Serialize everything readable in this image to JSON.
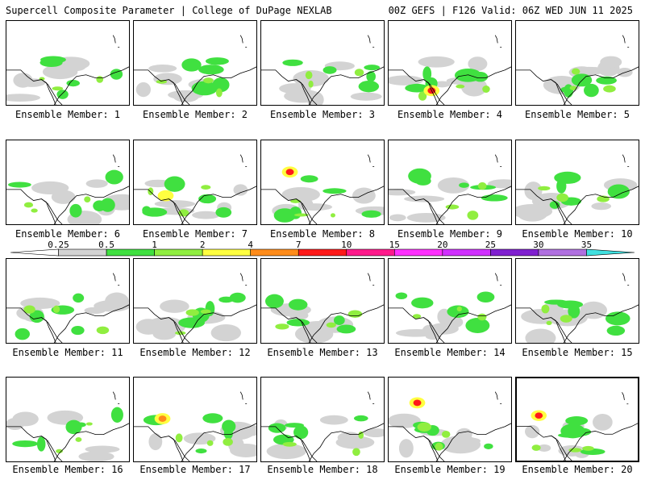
{
  "header": {
    "left": "Supercell Composite Parameter | College of DuPage NEXLAB",
    "right": "00Z GEFS | F126 Valid: 06Z WED JUN 11 2025"
  },
  "colorbar": {
    "labels": [
      "0.25",
      "0.5",
      "1",
      "2",
      "4",
      "7",
      "10",
      "15",
      "20",
      "25",
      "30",
      "35"
    ],
    "colors": [
      "#d3d3d3",
      "#40e040",
      "#90ee40",
      "#ffff40",
      "#ff8c1a",
      "#ff1a1a",
      "#ff1a8c",
      "#ff30ff",
      "#d030ff",
      "#8020d0",
      "#b070e0",
      "#40e0e0"
    ]
  },
  "members": [
    {
      "label": "Ensemble Member: 1"
    },
    {
      "label": "Ensemble Member: 2"
    },
    {
      "label": "Ensemble Member: 3"
    },
    {
      "label": "Ensemble Member: 4"
    },
    {
      "label": "Ensemble Member: 5"
    },
    {
      "label": "Ensemble Member: 6"
    },
    {
      "label": "Ensemble Member: 7"
    },
    {
      "label": "Ensemble Member: 8"
    },
    {
      "label": "Ensemble Member: 9"
    },
    {
      "label": "Ensemble Member: 10"
    },
    {
      "label": "Ensemble Member: 11"
    },
    {
      "label": "Ensemble Member: 12"
    },
    {
      "label": "Ensemble Member: 13"
    },
    {
      "label": "Ensemble Member: 14"
    },
    {
      "label": "Ensemble Member: 15"
    },
    {
      "label": "Ensemble Member: 16"
    },
    {
      "label": "Ensemble Member: 17"
    },
    {
      "label": "Ensemble Member: 18"
    },
    {
      "label": "Ensemble Member: 19"
    },
    {
      "label": "Ensemble Member: 20"
    }
  ]
}
